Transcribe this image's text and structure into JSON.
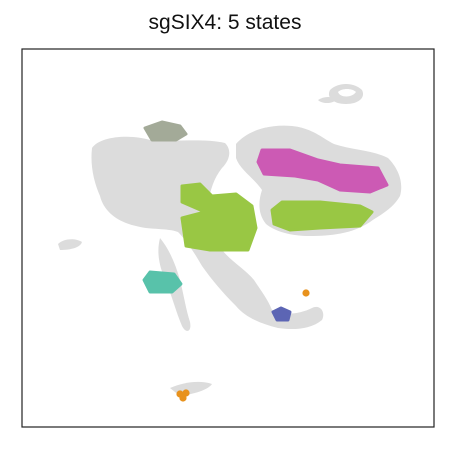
{
  "chart_data": {
    "type": "scatter",
    "title": "sgSIX4: 5 states",
    "xlabel": "",
    "ylabel": "",
    "legend": "none",
    "grid": false,
    "background_color": "#dcdcdc",
    "series": [
      {
        "color": "#a3aa98",
        "region": [
          [
            145,
            128
          ],
          [
            162,
            122
          ],
          [
            180,
            126
          ],
          [
            186,
            134
          ],
          [
            176,
            140
          ],
          [
            152,
            140
          ]
        ]
      },
      {
        "color": "#cc5ab4",
        "region": [
          [
            258,
            162
          ],
          [
            262,
            150
          ],
          [
            290,
            150
          ],
          [
            318,
            160
          ],
          [
            340,
            165
          ],
          [
            378,
            168
          ],
          [
            387,
            185
          ],
          [
            370,
            192
          ],
          [
            340,
            190
          ],
          [
            318,
            180
          ],
          [
            295,
            176
          ],
          [
            264,
            174
          ]
        ]
      },
      {
        "color": "#99c744",
        "region": [
          [
            182,
            186
          ],
          [
            200,
            184
          ],
          [
            212,
            196
          ],
          [
            236,
            194
          ],
          [
            252,
            206
          ],
          [
            256,
            228
          ],
          [
            248,
            250
          ],
          [
            210,
            250
          ],
          [
            186,
            246
          ],
          [
            182,
            218
          ],
          [
            205,
            212
          ],
          [
            182,
            202
          ]
        ]
      },
      {
        "color": "#99c744",
        "region": [
          [
            272,
            210
          ],
          [
            282,
            202
          ],
          [
            320,
            202
          ],
          [
            360,
            206
          ],
          [
            372,
            212
          ],
          [
            360,
            226
          ],
          [
            320,
            228
          ],
          [
            290,
            230
          ],
          [
            274,
            224
          ]
        ]
      },
      {
        "color": "#58c2aa",
        "region": [
          [
            144,
            280
          ],
          [
            150,
            272
          ],
          [
            174,
            274
          ],
          [
            181,
            284
          ],
          [
            172,
            292
          ],
          [
            150,
            292
          ]
        ]
      },
      {
        "color": "#5c65b4",
        "region": [
          [
            273,
            312
          ],
          [
            281,
            308
          ],
          [
            290,
            312
          ],
          [
            288,
            320
          ],
          [
            277,
            320
          ]
        ]
      },
      {
        "color": "#e8921d",
        "points": [
          [
            306,
            293
          ],
          [
            180,
            394
          ],
          [
            186,
            393
          ],
          [
            183,
            398
          ]
        ]
      }
    ]
  }
}
